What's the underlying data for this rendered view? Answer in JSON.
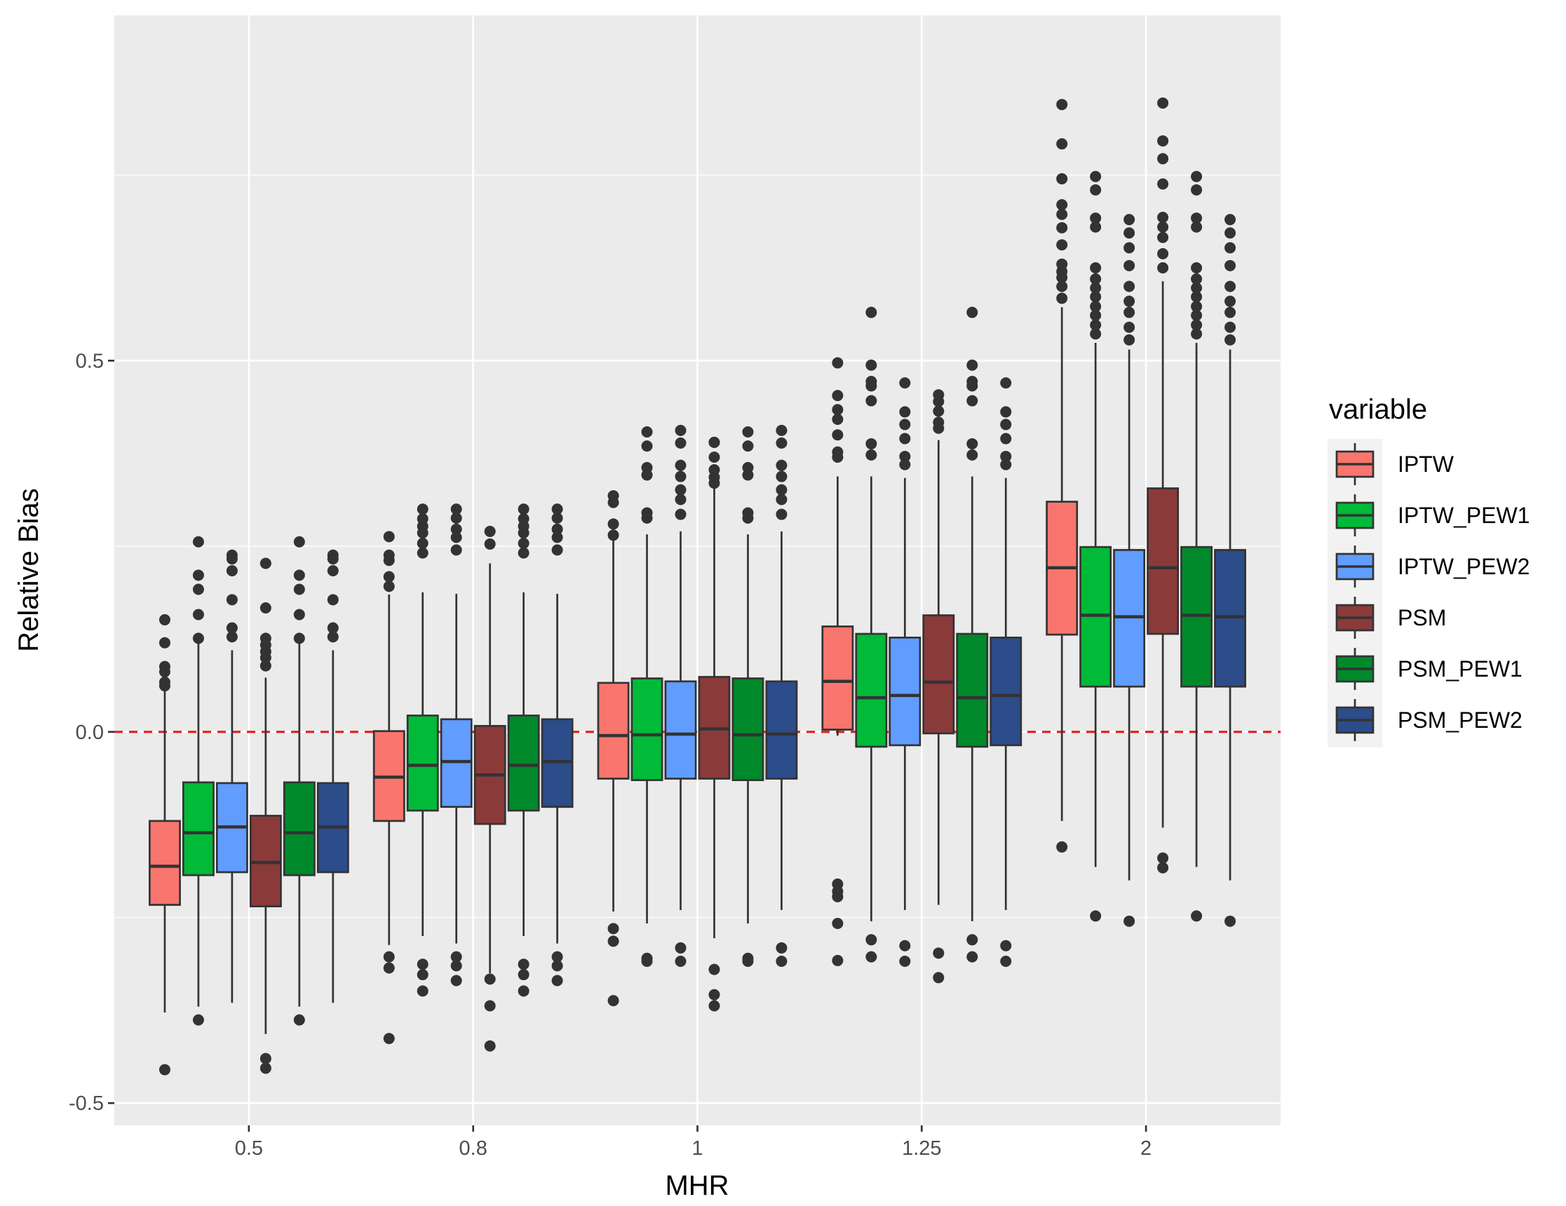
{
  "chart_data": {
    "type": "boxplot",
    "title": "",
    "xlabel": "MHR",
    "ylabel": "Relative Bias",
    "categories": [
      "0.5",
      "0.8",
      "1",
      "1.25",
      "2"
    ],
    "ylim": [
      -0.53,
      0.965
    ],
    "yticks": [
      -0.5,
      0.0,
      0.5
    ],
    "ytick_labels": [
      "-0.5",
      "0.0",
      "0.5"
    ],
    "reference_line": {
      "y": 0.0,
      "style": "dashed",
      "color": "#e41a1c"
    },
    "legend": {
      "title": "variable",
      "position": "right"
    },
    "series": [
      {
        "name": "IPTW",
        "color": "#F8766D",
        "boxes": [
          {
            "q1": -0.233,
            "median": -0.181,
            "q3": -0.12,
            "wlow": -0.378,
            "whigh": 0.057,
            "outliers": [
              0.062,
              0.067,
              0.081,
              0.088,
              0.12,
              0.151,
              -0.455
            ]
          },
          {
            "q1": -0.12,
            "median": -0.061,
            "q3": 0.001,
            "wlow": -0.287,
            "whigh": 0.185,
            "outliers": [
              0.196,
              0.209,
              0.231,
              0.238,
              0.263,
              -0.303,
              -0.318,
              -0.413
            ]
          },
          {
            "q1": -0.063,
            "median": -0.005,
            "q3": 0.066,
            "wlow": -0.242,
            "whigh": 0.262,
            "outliers": [
              0.265,
              0.28,
              0.309,
              0.318,
              -0.265,
              -0.282,
              -0.362
            ]
          },
          {
            "q1": 0.003,
            "median": 0.068,
            "q3": 0.142,
            "wlow": -0.005,
            "whigh": 0.344,
            "outliers": [
              0.37,
              0.377,
              0.4,
              0.421,
              0.434,
              0.453,
              0.497,
              -0.205,
              -0.215,
              -0.222,
              -0.258,
              -0.308
            ]
          },
          {
            "q1": 0.131,
            "median": 0.221,
            "q3": 0.31,
            "wlow": -0.12,
            "whigh": 0.572,
            "outliers": [
              0.584,
              0.6,
              0.612,
              0.62,
              0.63,
              0.656,
              0.679,
              0.697,
              0.71,
              0.745,
              0.792,
              0.845,
              -0.155
            ]
          }
        ]
      },
      {
        "name": "IPTW_PEW1",
        "color": "#00BA38",
        "boxes": [
          {
            "q1": -0.193,
            "median": -0.136,
            "q3": -0.068,
            "wlow": -0.37,
            "whigh": 0.12,
            "outliers": [
              0.126,
              0.158,
              0.192,
              0.211,
              0.256,
              -0.388
            ]
          },
          {
            "q1": -0.106,
            "median": -0.045,
            "q3": 0.022,
            "wlow": -0.275,
            "whigh": 0.188,
            "outliers": [
              0.241,
              0.254,
              0.268,
              0.277,
              0.287,
              0.3,
              -0.313,
              -0.327,
              -0.349
            ]
          },
          {
            "q1": -0.065,
            "median": -0.004,
            "q3": 0.072,
            "wlow": -0.258,
            "whigh": 0.266,
            "outliers": [
              0.288,
              0.295,
              0.346,
              0.356,
              0.385,
              0.404,
              -0.305,
              -0.309
            ]
          },
          {
            "q1": -0.02,
            "median": 0.046,
            "q3": 0.132,
            "wlow": -0.255,
            "whigh": 0.344,
            "outliers": [
              0.373,
              0.388,
              0.446,
              0.466,
              0.472,
              0.494,
              0.565,
              -0.28,
              -0.303
            ]
          },
          {
            "q1": 0.061,
            "median": 0.157,
            "q3": 0.249,
            "wlow": -0.182,
            "whigh": 0.524,
            "outliers": [
              0.536,
              0.548,
              0.561,
              0.573,
              0.586,
              0.598,
              0.61,
              0.625,
              0.68,
              0.692,
              0.73,
              0.748,
              -0.248
            ]
          }
        ]
      },
      {
        "name": "IPTW_PEW2",
        "color": "#619CFF",
        "boxes": [
          {
            "q1": -0.189,
            "median": -0.128,
            "q3": -0.069,
            "wlow": -0.365,
            "whigh": 0.11,
            "outliers": [
              0.128,
              0.14,
              0.178,
              0.217,
              0.233,
              0.238
            ]
          },
          {
            "q1": -0.101,
            "median": -0.04,
            "q3": 0.017,
            "wlow": -0.285,
            "whigh": 0.186,
            "outliers": [
              0.245,
              0.262,
              0.273,
              0.288,
              0.3,
              -0.303,
              -0.315,
              -0.335
            ]
          },
          {
            "q1": -0.063,
            "median": -0.003,
            "q3": 0.068,
            "wlow": -0.24,
            "whigh": 0.27,
            "outliers": [
              0.293,
              0.313,
              0.326,
              0.344,
              0.359,
              0.389,
              0.406,
              -0.291,
              -0.309
            ]
          },
          {
            "q1": -0.018,
            "median": 0.049,
            "q3": 0.127,
            "wlow": -0.24,
            "whigh": 0.342,
            "outliers": [
              0.36,
              0.371,
              0.395,
              0.414,
              0.431,
              0.47,
              -0.288,
              -0.309
            ]
          },
          {
            "q1": 0.061,
            "median": 0.155,
            "q3": 0.245,
            "wlow": -0.2,
            "whigh": 0.515,
            "outliers": [
              0.528,
              0.545,
              0.565,
              0.58,
              0.6,
              0.628,
              0.652,
              0.672,
              0.69,
              -0.255
            ]
          }
        ]
      },
      {
        "name": "PSM",
        "color": "#8B3A3A",
        "boxes": [
          {
            "q1": -0.235,
            "median": -0.176,
            "q3": -0.113,
            "wlow": -0.407,
            "whigh": 0.073,
            "outliers": [
              0.089,
              0.1,
              0.108,
              0.117,
              0.126,
              0.167,
              0.227,
              -0.44,
              -0.453
            ]
          },
          {
            "q1": -0.124,
            "median": -0.058,
            "q3": 0.008,
            "wlow": -0.325,
            "whigh": 0.227,
            "outliers": [
              0.253,
              0.27,
              -0.333,
              -0.369,
              -0.423
            ]
          },
          {
            "q1": -0.063,
            "median": 0.004,
            "q3": 0.074,
            "wlow": -0.278,
            "whigh": 0.334,
            "outliers": [
              0.335,
              0.343,
              0.353,
              0.37,
              0.39,
              0.39,
              -0.32,
              -0.354,
              -0.369
            ]
          },
          {
            "q1": -0.002,
            "median": 0.067,
            "q3": 0.157,
            "wlow": -0.233,
            "whigh": 0.393,
            "outliers": [
              0.409,
              0.417,
              0.432,
              0.445,
              0.454,
              -0.298,
              -0.331
            ]
          },
          {
            "q1": 0.132,
            "median": 0.221,
            "q3": 0.328,
            "wlow": -0.129,
            "whigh": 0.607,
            "outliers": [
              0.625,
              0.644,
              0.666,
              0.68,
              0.693,
              0.738,
              0.772,
              0.796,
              0.847,
              -0.17,
              -0.183
            ]
          }
        ]
      },
      {
        "name": "PSM_PEW1",
        "color": "#00892B",
        "boxes": [
          {
            "q1": -0.193,
            "median": -0.136,
            "q3": -0.068,
            "wlow": -0.37,
            "whigh": 0.12,
            "outliers": [
              0.126,
              0.158,
              0.192,
              0.211,
              0.256,
              -0.388
            ]
          },
          {
            "q1": -0.106,
            "median": -0.045,
            "q3": 0.022,
            "wlow": -0.275,
            "whigh": 0.188,
            "outliers": [
              0.241,
              0.254,
              0.268,
              0.277,
              0.287,
              0.3,
              -0.313,
              -0.327,
              -0.349
            ]
          },
          {
            "q1": -0.065,
            "median": -0.004,
            "q3": 0.072,
            "wlow": -0.258,
            "whigh": 0.266,
            "outliers": [
              0.288,
              0.295,
              0.346,
              0.356,
              0.385,
              0.404,
              -0.305,
              -0.309
            ]
          },
          {
            "q1": -0.02,
            "median": 0.046,
            "q3": 0.132,
            "wlow": -0.255,
            "whigh": 0.344,
            "outliers": [
              0.373,
              0.388,
              0.446,
              0.466,
              0.472,
              0.494,
              0.565,
              -0.28,
              -0.303
            ]
          },
          {
            "q1": 0.061,
            "median": 0.157,
            "q3": 0.249,
            "wlow": -0.182,
            "whigh": 0.524,
            "outliers": [
              0.536,
              0.548,
              0.561,
              0.573,
              0.586,
              0.598,
              0.61,
              0.625,
              0.68,
              0.692,
              0.73,
              0.748,
              -0.248
            ]
          }
        ]
      },
      {
        "name": "PSM_PEW2",
        "color": "#2C4C8A",
        "boxes": [
          {
            "q1": -0.189,
            "median": -0.128,
            "q3": -0.069,
            "wlow": -0.365,
            "whigh": 0.11,
            "outliers": [
              0.128,
              0.14,
              0.178,
              0.217,
              0.233,
              0.238
            ]
          },
          {
            "q1": -0.101,
            "median": -0.04,
            "q3": 0.017,
            "wlow": -0.285,
            "whigh": 0.186,
            "outliers": [
              0.245,
              0.262,
              0.273,
              0.288,
              0.3,
              -0.303,
              -0.315,
              -0.335
            ]
          },
          {
            "q1": -0.063,
            "median": -0.003,
            "q3": 0.068,
            "wlow": -0.24,
            "whigh": 0.27,
            "outliers": [
              0.293,
              0.313,
              0.326,
              0.344,
              0.359,
              0.389,
              0.406,
              -0.291,
              -0.309
            ]
          },
          {
            "q1": -0.018,
            "median": 0.049,
            "q3": 0.127,
            "wlow": -0.24,
            "whigh": 0.342,
            "outliers": [
              0.36,
              0.371,
              0.395,
              0.414,
              0.431,
              0.47,
              -0.288,
              -0.309
            ]
          },
          {
            "q1": 0.061,
            "median": 0.155,
            "q3": 0.245,
            "wlow": -0.2,
            "whigh": 0.515,
            "outliers": [
              0.528,
              0.545,
              0.565,
              0.58,
              0.6,
              0.628,
              0.652,
              0.672,
              0.69,
              -0.255
            ]
          }
        ]
      }
    ]
  }
}
